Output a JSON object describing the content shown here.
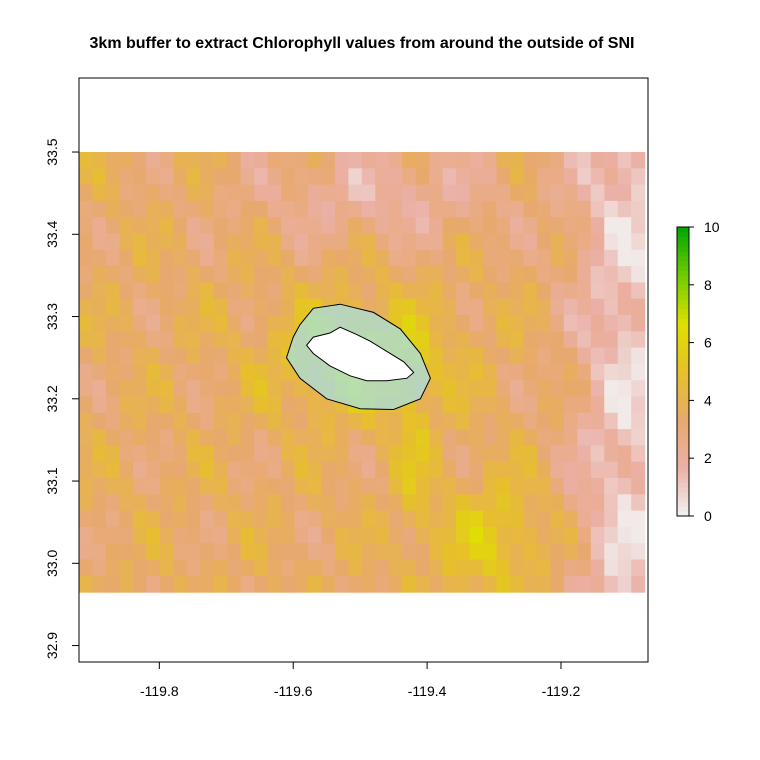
{
  "chart_data": {
    "type": "heatmap",
    "title": "3km buffer to extract Chlorophyll values from around the outside of SNI",
    "xlabel": "",
    "ylabel": "",
    "xlim": [
      -119.92,
      -119.07
    ],
    "ylim": [
      32.88,
      33.59
    ],
    "raster_extent": {
      "xmin": -119.92,
      "xmax": -119.075,
      "ymin": 32.965,
      "ymax": 33.5
    },
    "grid": {
      "ncol": 42,
      "nrow": 27
    },
    "x_ticks": [
      -119.8,
      -119.6,
      -119.4,
      -119.2
    ],
    "x_tick_labels": [
      "-119.8",
      "-119.6",
      "-119.4",
      "-119.2"
    ],
    "y_ticks": [
      32.9,
      33.0,
      33.1,
      33.2,
      33.3,
      33.4,
      33.5
    ],
    "y_tick_labels": [
      "32.9",
      "33.0",
      "33.1",
      "33.2",
      "33.3",
      "33.4",
      "33.5"
    ],
    "legend": {
      "placement": "right",
      "range": [
        0,
        10
      ],
      "ticks": [
        0,
        2,
        4,
        6,
        8,
        10
      ],
      "tick_labels": [
        "0",
        "2",
        "4",
        "6",
        "8",
        "10"
      ],
      "colors": [
        "#f2f2f2",
        "#ebb0a6",
        "#e8a96e",
        "#e6c02a",
        "#dfe000",
        "#6fcc00",
        "#00a600"
      ]
    },
    "buffer_outline": {
      "label": "3km buffer",
      "polygon": [
        [
          -119.59,
          33.29
        ],
        [
          -119.57,
          33.31
        ],
        [
          -119.53,
          33.315
        ],
        [
          -119.48,
          33.305
        ],
        [
          -119.44,
          33.285
        ],
        [
          -119.41,
          33.255
        ],
        [
          -119.395,
          33.225
        ],
        [
          -119.41,
          33.2
        ],
        [
          -119.45,
          33.187
        ],
        [
          -119.5,
          33.188
        ],
        [
          -119.55,
          33.2
        ],
        [
          -119.59,
          33.225
        ],
        [
          -119.61,
          33.25
        ],
        [
          -119.6,
          33.275
        ]
      ]
    },
    "island_outline": {
      "label": "SNI",
      "polygon": [
        [
          -119.57,
          33.275
        ],
        [
          -119.545,
          33.28
        ],
        [
          -119.53,
          33.287
        ],
        [
          -119.505,
          33.278
        ],
        [
          -119.485,
          33.27
        ],
        [
          -119.465,
          33.26
        ],
        [
          -119.435,
          33.245
        ],
        [
          -119.42,
          33.232
        ],
        [
          -119.43,
          33.225
        ],
        [
          -119.46,
          33.222
        ],
        [
          -119.49,
          33.222
        ],
        [
          -119.515,
          33.228
        ],
        [
          -119.545,
          33.24
        ],
        [
          -119.57,
          33.255
        ],
        [
          -119.58,
          33.265
        ]
      ]
    },
    "colors": {
      "background": "#ffffff",
      "nodata": "#ffffff",
      "buffer_fill": "#a8dfe0",
      "island_fill": "#ffffff",
      "outline": "#000000"
    }
  }
}
